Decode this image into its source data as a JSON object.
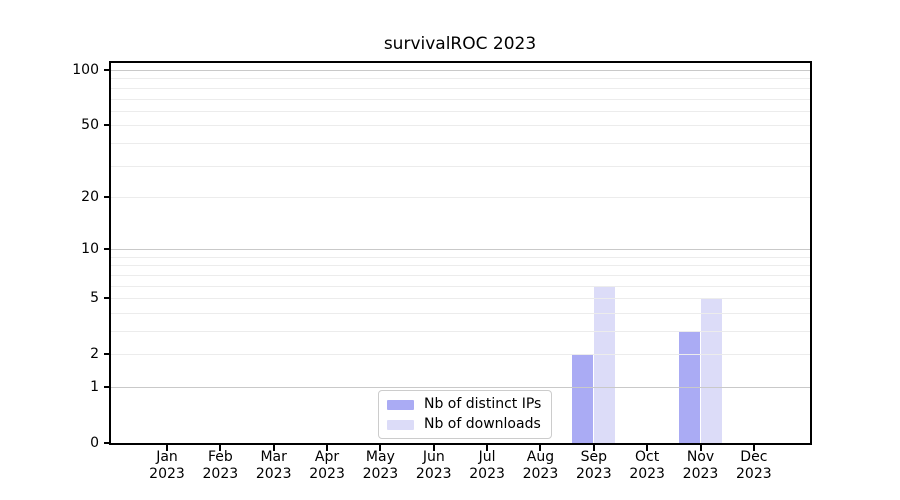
{
  "chart_data": {
    "type": "bar",
    "title": "survivalROC 2023",
    "categories": [
      "Jan",
      "Feb",
      "Mar",
      "Apr",
      "May",
      "Jun",
      "Jul",
      "Aug",
      "Sep",
      "Oct",
      "Nov",
      "Dec"
    ],
    "year_label": "2023",
    "series": [
      {
        "name": "Nb of distinct IPs",
        "color": "#aaabf4",
        "values": [
          0,
          0,
          0,
          0,
          0,
          0,
          0,
          0,
          2,
          0,
          3,
          0
        ]
      },
      {
        "name": "Nb of downloads",
        "color": "#dcdcf8",
        "values": [
          0,
          0,
          0,
          0,
          0,
          0,
          0,
          0,
          6,
          0,
          5,
          0
        ]
      }
    ],
    "scale": "log1p",
    "ylim": [
      0,
      111
    ],
    "yticks": [
      0,
      1,
      2,
      5,
      10,
      20,
      50,
      100
    ],
    "minor_gridlines": [
      2,
      3,
      4,
      5,
      6,
      7,
      8,
      9,
      20,
      30,
      40,
      50,
      60,
      70,
      80,
      90
    ],
    "major_gridlines": [
      1,
      10,
      100
    ],
    "xlabel": "",
    "ylabel": "",
    "grid": true,
    "legend_position": "lower center",
    "colors": {
      "minor_grid": "#ececec",
      "major_grid": "#c9c9c9",
      "axis": "#000000",
      "legend_border": "#cccccc",
      "background": "#ffffff"
    }
  }
}
